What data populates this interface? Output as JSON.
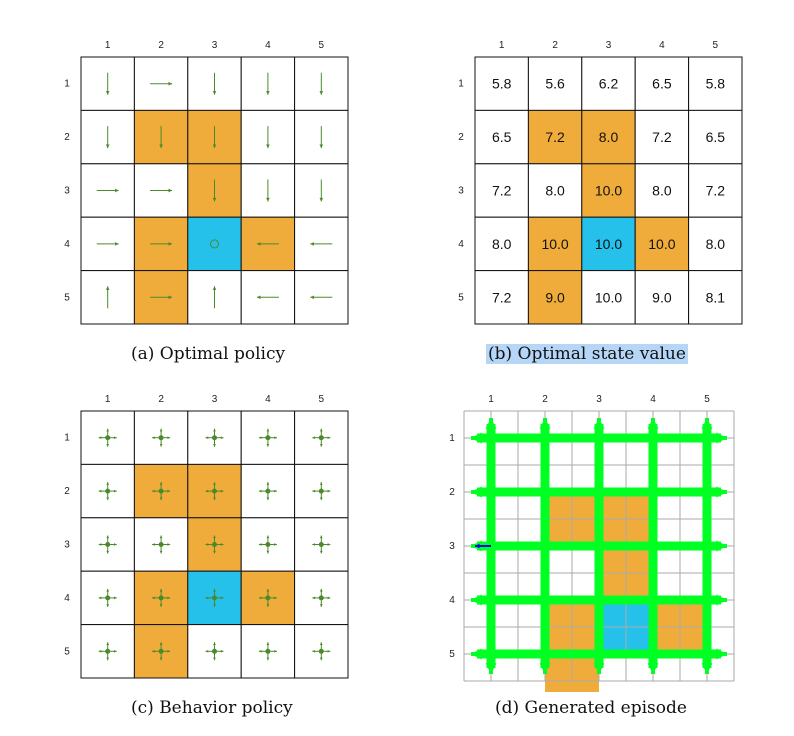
{
  "columns": [
    "1",
    "2",
    "3",
    "4",
    "5"
  ],
  "rows": [
    "1",
    "2",
    "3",
    "4",
    "5"
  ],
  "colors": {
    "forbidden": "#f0ac3a",
    "target": "#25c1eb",
    "normal": "#ffffff",
    "arrow": "#4a8a2b",
    "episode": "#00ff22",
    "episode_start": "#0000ee"
  },
  "cell_types": [
    [
      "normal",
      "normal",
      "normal",
      "normal",
      "normal"
    ],
    [
      "normal",
      "forbidden",
      "forbidden",
      "normal",
      "normal"
    ],
    [
      "normal",
      "normal",
      "forbidden",
      "normal",
      "normal"
    ],
    [
      "normal",
      "forbidden",
      "target",
      "forbidden",
      "normal"
    ],
    [
      "normal",
      "forbidden",
      "normal",
      "normal",
      "normal"
    ]
  ],
  "panels": {
    "a": {
      "caption": "(a) Optimal policy",
      "policy": [
        [
          "down",
          "right",
          "down",
          "down",
          "down"
        ],
        [
          "down",
          "down",
          "down",
          "down",
          "down"
        ],
        [
          "right",
          "right",
          "down",
          "down",
          "down"
        ],
        [
          "right",
          "right",
          "stay",
          "left",
          "left"
        ],
        [
          "up",
          "right",
          "up",
          "left",
          "left"
        ]
      ]
    },
    "b": {
      "caption": "(b) Optimal state value",
      "values": [
        [
          "5.8",
          "5.6",
          "6.2",
          "6.5",
          "5.8"
        ],
        [
          "6.5",
          "7.2",
          "8.0",
          "7.2",
          "6.5"
        ],
        [
          "7.2",
          "8.0",
          "10.0",
          "8.0",
          "7.2"
        ],
        [
          "8.0",
          "10.0",
          "10.0",
          "10.0",
          "8.0"
        ],
        [
          "7.2",
          "9.0",
          "10.0",
          "9.0",
          "8.1"
        ]
      ]
    },
    "c": {
      "caption": "(c) Behavior policy",
      "policy_description": "uniform"
    },
    "d": {
      "caption": "(d) Generated episode",
      "start_cell": [
        3,
        1
      ]
    }
  }
}
